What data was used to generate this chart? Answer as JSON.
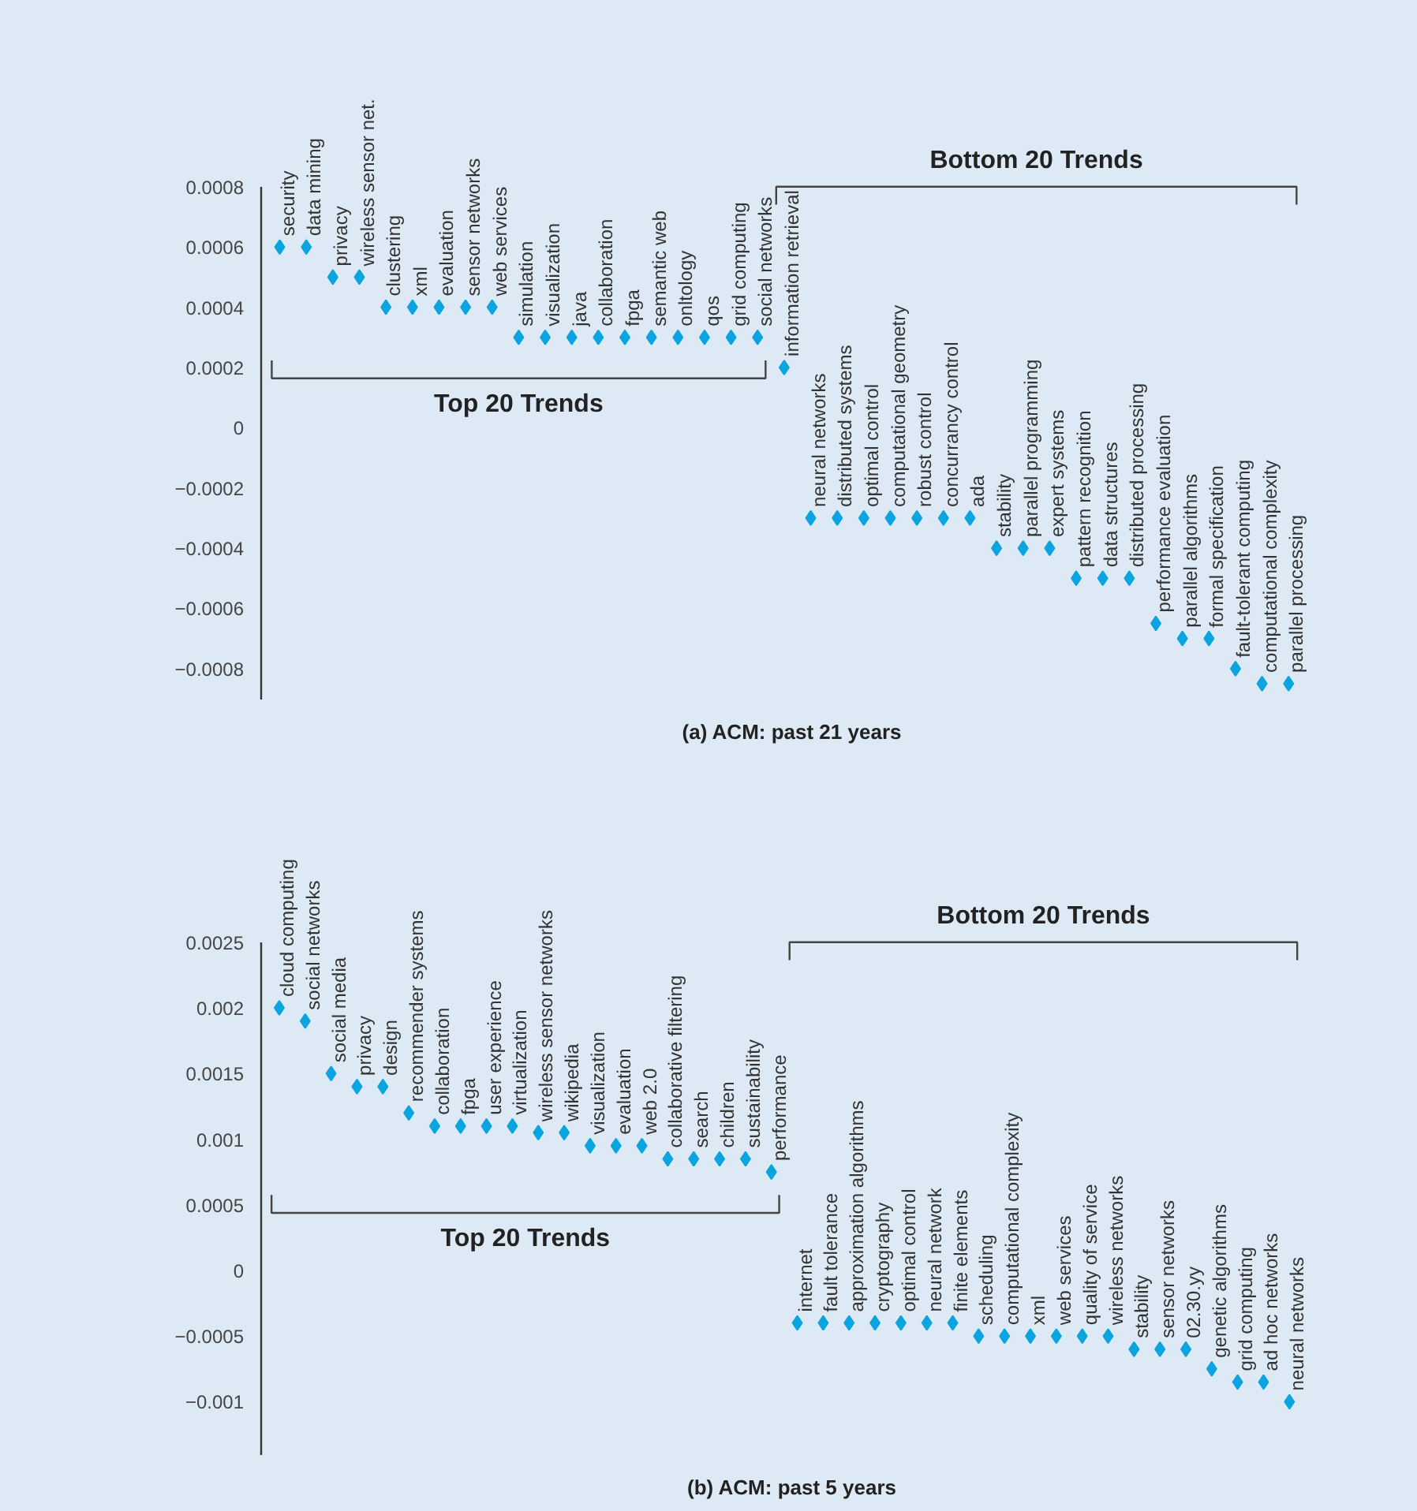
{
  "chart_data": [
    {
      "type": "scatter",
      "title": "(a) ACM: past 21 years",
      "categories": [
        "security",
        "data mining",
        "privacy",
        "wireless sensor net.",
        "clustering",
        "xml",
        "evaluation",
        "sensor networks",
        "web services",
        "simulation",
        "visualization",
        "java",
        "collaboration",
        "fpga",
        "semantic web",
        "onltology",
        "qos",
        "grid computing",
        "social networks",
        "information retrieval",
        "neural networks",
        "distributed systems",
        "optimal control",
        "computational geometry",
        "robust control",
        "concurrancy control",
        "ada",
        "stability",
        "parallel programming",
        "expert systems",
        "pattern recognition",
        "data structures",
        "distributed processing",
        "performance evaluation",
        "parallel algorithms",
        "formal specification",
        "fault-tolerant computing",
        "computational complexity",
        "parallel processing"
      ],
      "values": [
        0.0006,
        0.0006,
        0.0005,
        0.0005,
        0.0004,
        0.0004,
        0.0004,
        0.0004,
        0.0004,
        0.0003,
        0.0003,
        0.0003,
        0.0003,
        0.0003,
        0.0003,
        0.0003,
        0.0003,
        0.0003,
        0.0003,
        0.0002,
        -0.0003,
        -0.0003,
        -0.0003,
        -0.0003,
        -0.0003,
        -0.0003,
        -0.0003,
        -0.0004,
        -0.0004,
        -0.0004,
        -0.0005,
        -0.0005,
        -0.0005,
        -0.00065,
        -0.0007,
        -0.0007,
        -0.0008,
        -0.00085,
        -0.00085
      ],
      "color": "#0aa5e0",
      "marker": "diamond",
      "ylim": [
        -0.0009,
        0.0008
      ],
      "yticks": [
        0.0008,
        0.0006,
        0.0004,
        0.0002,
        0,
        {
          "value": -0.0002,
          "label": "−0.0002"
        },
        {
          "value": -0.0004,
          "label": "−0.0004"
        },
        {
          "value": -0.0006,
          "label": "−0.0006"
        },
        {
          "value": -0.0008,
          "label": "−0.0008"
        }
      ],
      "tick_labels": "y",
      "grid": false,
      "annotations": [
        "Top 20 Trends",
        "Bottom 20 Trends"
      ]
    },
    {
      "type": "scatter",
      "title": "(b) ACM: past 5 years",
      "categories": [
        "cloud computing",
        "social networks",
        "social media",
        "privacy",
        "design",
        "recommender systems",
        "collaboration",
        "fpga",
        "user experience",
        "virtualization",
        "wireless sensor networks",
        "wikipedia",
        "visualization",
        "evaluation",
        "web 2.0",
        "collaborative filtering",
        "search",
        "children",
        "sustainability",
        "performance",
        "internet",
        "fault tolerance",
        "approximation algorithms",
        "cryptography",
        "optimal control",
        "neural network",
        "finite elements",
        "scheduling",
        "computational complexity",
        "xml",
        "web services",
        "quality of service",
        "wireless networks",
        "stability",
        "sensor networks",
        "02.30.yy",
        "genetic algorithms",
        "grid computing",
        "ad hoc networks",
        "neural networks"
      ],
      "values": [
        0.002,
        0.0019,
        0.0015,
        0.0014,
        0.0014,
        0.0012,
        0.0011,
        0.0011,
        0.0011,
        0.0011,
        0.00105,
        0.00105,
        0.00095,
        0.00095,
        0.00095,
        0.00085,
        0.00085,
        0.00085,
        0.00085,
        0.00075,
        -0.0004,
        -0.0004,
        -0.0004,
        -0.0004,
        -0.0004,
        -0.0004,
        -0.0004,
        -0.0005,
        -0.0005,
        -0.0005,
        -0.0005,
        -0.0005,
        -0.0005,
        -0.0006,
        -0.0006,
        -0.0006,
        -0.00075,
        -0.00085,
        -0.00085,
        -0.001
      ],
      "color": "#0aa5e0",
      "marker": "diamond",
      "ylim": [
        -0.0014,
        0.0025
      ],
      "yticks": [
        0.0025,
        0.002,
        0.0015,
        0.001,
        0.0005,
        0,
        {
          "value": -0.0005,
          "label": "−0.0005"
        },
        {
          "value": -0.001,
          "label": "−0.001"
        }
      ],
      "tick_labels": "y",
      "grid": false,
      "annotations": [
        "Top 20 Trends",
        "Bottom 20 Trends"
      ]
    }
  ]
}
